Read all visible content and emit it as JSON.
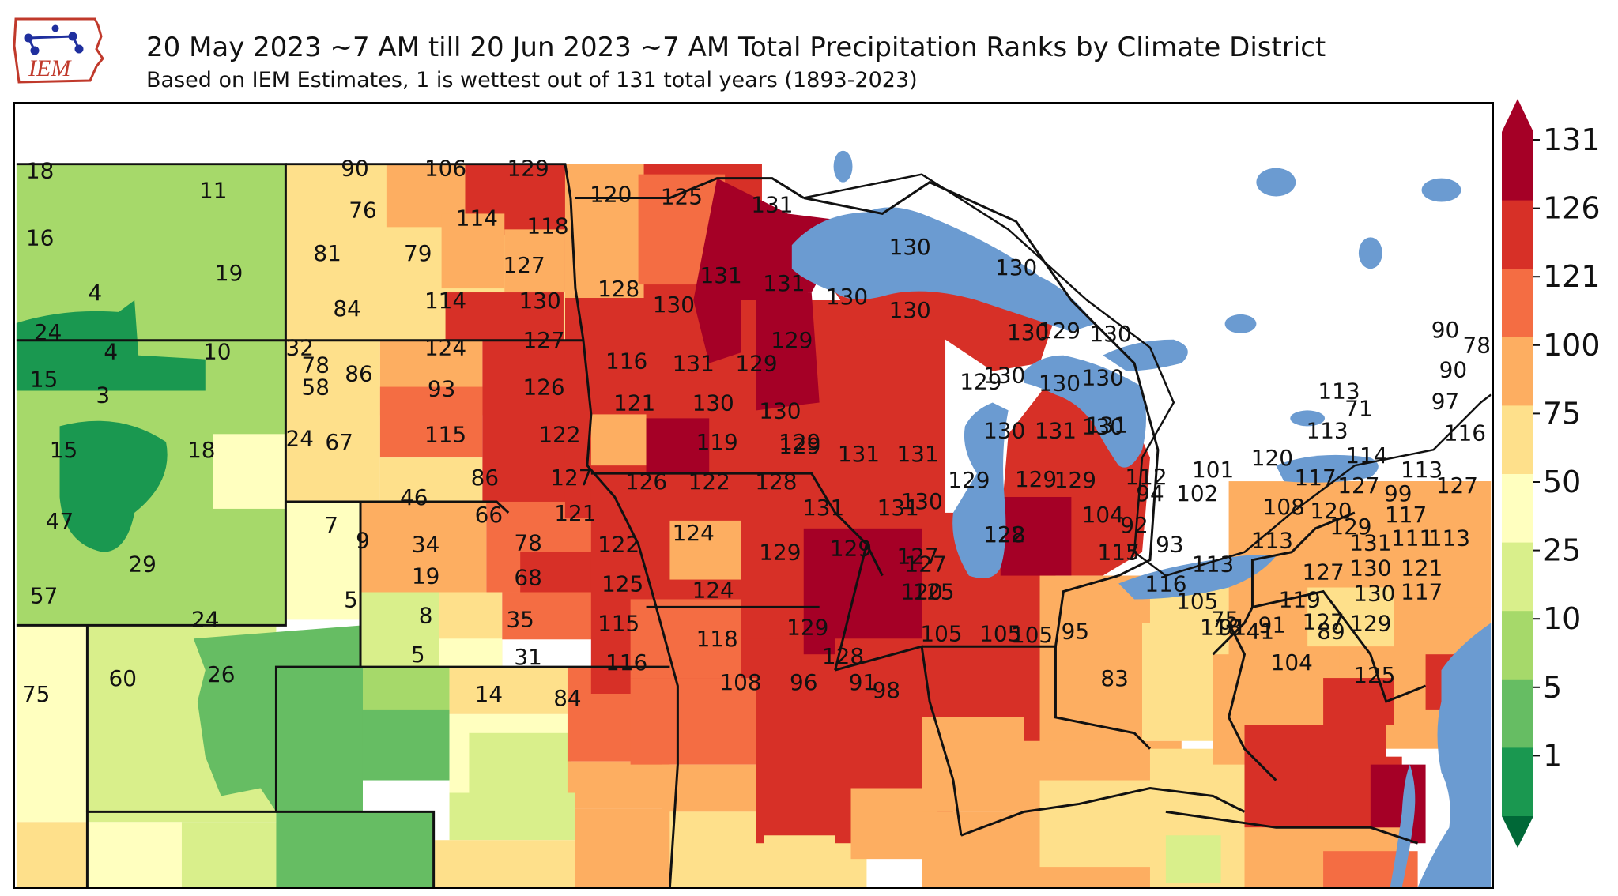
{
  "header": {
    "logo_text": "IEM",
    "title": "20 May 2023 ~7 AM till 20 Jun 2023 ~7 AM Total Precipitation Ranks by Climate District",
    "subtitle": "Based on IEM Estimates, 1 is wettest out of 131 total years (1893-2023)"
  },
  "colorbar": {
    "ticks": [
      "131",
      "126",
      "121",
      "100",
      "75",
      "50",
      "25",
      "10",
      "5",
      "1"
    ],
    "colors": [
      "#a50026",
      "#d73027",
      "#f46d43",
      "#fdae61",
      "#fee08b",
      "#ffffbf",
      "#d9ef8b",
      "#a6d96a",
      "#66bd63",
      "#1a9850"
    ],
    "arrow_top_color": "#a50026",
    "arrow_bottom_color": "#006837"
  },
  "map": {
    "lake_color": "#6b9bd1",
    "border_color": "#111111",
    "district_ranks": [
      "18",
      "11",
      "16",
      "19",
      "4",
      "24",
      "4",
      "10",
      "32",
      "15",
      "3",
      "58",
      "15",
      "18",
      "24",
      "47",
      "7",
      "9",
      "29",
      "57",
      "24",
      "5",
      "75",
      "60",
      "26",
      "5",
      "90",
      "106",
      "129",
      "76",
      "114",
      "118",
      "81",
      "79",
      "127",
      "84",
      "114",
      "130",
      "78",
      "86",
      "124",
      "127",
      "93",
      "126",
      "67",
      "115",
      "122",
      "86",
      "127",
      "46",
      "66",
      "121",
      "34",
      "78",
      "122",
      "19",
      "68",
      "125",
      "8",
      "35",
      "115",
      "31",
      "116",
      "14",
      "84",
      "120",
      "125",
      "131",
      "128",
      "131",
      "131",
      "130",
      "130",
      "130",
      "116",
      "131",
      "129",
      "129",
      "121",
      "130",
      "130",
      "129",
      "119",
      "129",
      "126",
      "122",
      "128",
      "131",
      "131",
      "131",
      "131",
      "124",
      "129",
      "129",
      "124",
      "127",
      "118",
      "129",
      "128",
      "108",
      "96",
      "91",
      "98",
      "130",
      "130",
      "130",
      "130",
      "129",
      "129",
      "130",
      "130",
      "130",
      "130",
      "131",
      "131",
      "130",
      "129",
      "129",
      "129",
      "130",
      "128",
      "122",
      "127",
      "125",
      "120",
      "105",
      "105",
      "105",
      "95",
      "83",
      "112",
      "101",
      "94",
      "102",
      "104",
      "92",
      "93",
      "117",
      "115",
      "113",
      "116",
      "105",
      "91",
      "75",
      "118",
      "41",
      "89",
      "90",
      "78",
      "90",
      "97",
      "113",
      "71",
      "113",
      "116",
      "120",
      "114",
      "117",
      "127",
      "113",
      "99",
      "127",
      "108",
      "120",
      "129",
      "117",
      "113",
      "131",
      "111",
      "113",
      "127",
      "130",
      "121",
      "130",
      "117",
      "119",
      "91",
      "127",
      "129",
      "104",
      "125"
    ]
  }
}
